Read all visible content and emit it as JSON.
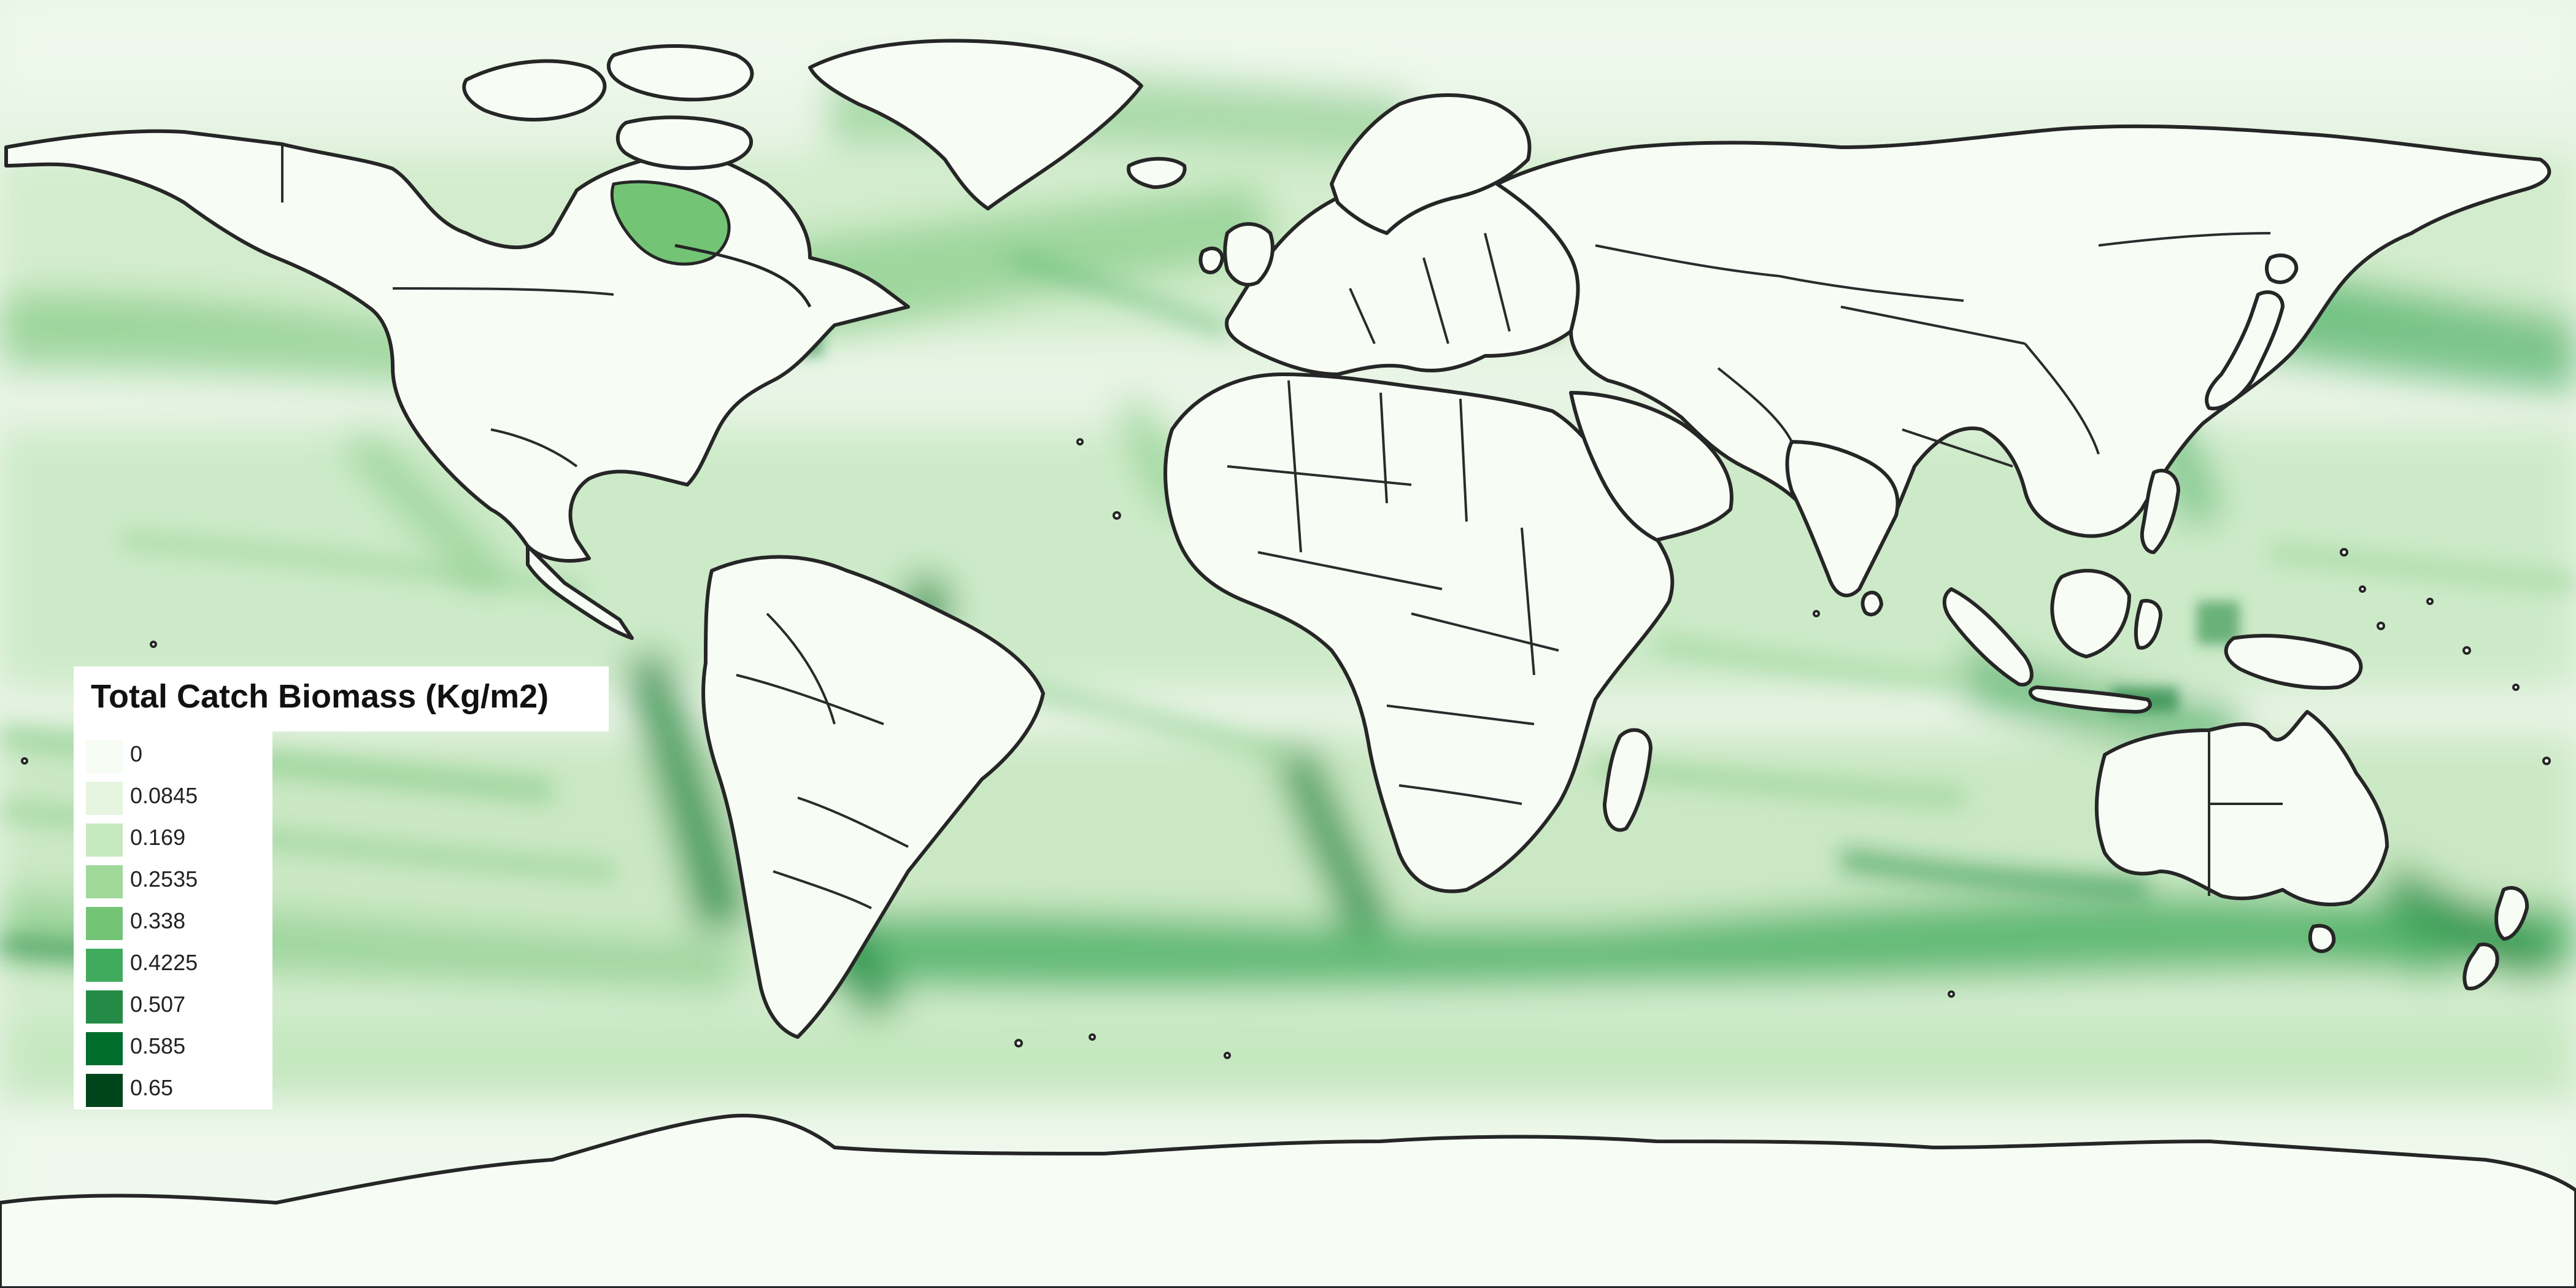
{
  "legend": {
    "title": "Total Catch Biomass (Kg/m2)",
    "items": [
      {
        "label": "0",
        "color": "#f7fcf5"
      },
      {
        "label": "0.0845",
        "color": "#e5f5e0"
      },
      {
        "label": "0.169",
        "color": "#c7e9c0"
      },
      {
        "label": "0.2535",
        "color": "#a1d99b"
      },
      {
        "label": "0.338",
        "color": "#74c476"
      },
      {
        "label": "0.4225",
        "color": "#41ab5d"
      },
      {
        "label": "0.507",
        "color": "#238b45"
      },
      {
        "label": "0.585",
        "color": "#006d2c"
      },
      {
        "label": "0.65",
        "color": "#00441b"
      }
    ]
  },
  "colors": {
    "ocean_base": "#eef6ec",
    "land": "#f7fcf5",
    "outline": "#262626"
  }
}
